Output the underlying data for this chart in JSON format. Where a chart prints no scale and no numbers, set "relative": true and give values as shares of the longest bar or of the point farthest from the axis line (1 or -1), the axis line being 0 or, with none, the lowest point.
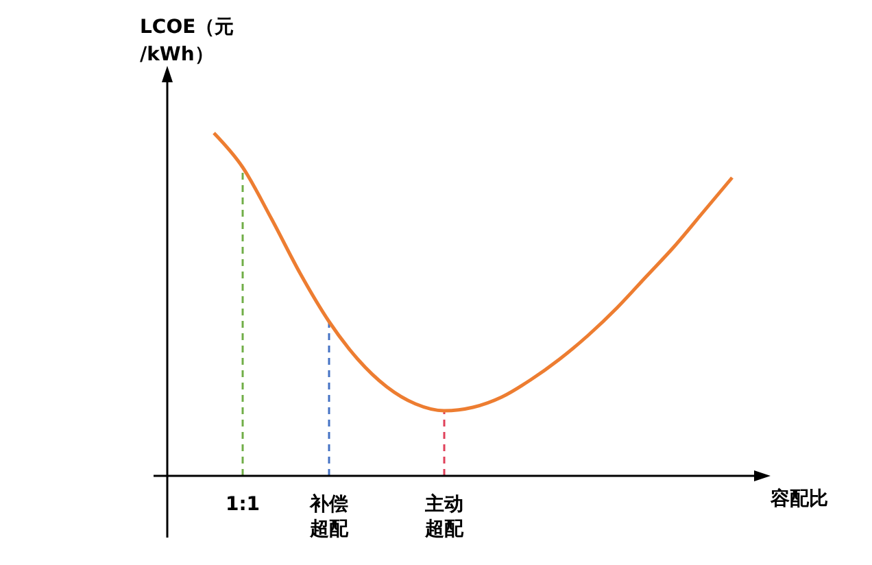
{
  "chart_data": {
    "type": "line",
    "relative": true,
    "ylabel": "LCOE（元/kWh）",
    "xlabel": "容配比",
    "categories": [
      null,
      "1:1",
      null,
      null,
      "补偿超配",
      null,
      null,
      null,
      "主动超配",
      null,
      null,
      null,
      null,
      null,
      null,
      null,
      null,
      null,
      null
    ],
    "series": [
      {
        "color": "#ed7d31",
        "values": [
          1.0,
          0.9,
          0.75,
          0.59,
          0.45,
          0.34,
          0.26,
          0.21,
          0.19,
          0.2,
          0.23,
          0.28,
          0.34,
          0.41,
          0.49,
          0.58,
          0.67,
          0.77,
          0.87
        ]
      }
    ],
    "ref_lines": [
      {
        "axis": "x",
        "value": "1:1",
        "color": "#70ad47",
        "line_style": "dashed"
      },
      {
        "axis": "x",
        "value": "补偿超配",
        "color": "#4472c4",
        "line_style": "dashed"
      },
      {
        "axis": "x",
        "value": "主动超配",
        "color": "#e0405a",
        "line_style": "dashed"
      }
    ],
    "marker": "none",
    "line_style": "solid"
  }
}
